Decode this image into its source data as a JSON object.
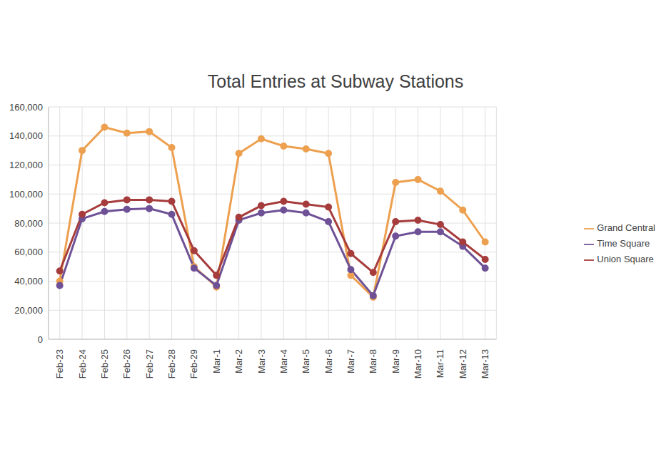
{
  "chart_data": {
    "type": "line",
    "title": "Total Entries at Subway Stations",
    "categories": [
      "Feb-23",
      "Feb-24",
      "Feb-25",
      "Feb-26",
      "Feb-27",
      "Feb-28",
      "Feb-29",
      "Mar-1",
      "Mar-2",
      "Mar-3",
      "Mar-4",
      "Mar-5",
      "Mar-6",
      "Mar-7",
      "Mar-8",
      "Mar-9",
      "Mar-10",
      "Mar-11",
      "Mar-12",
      "Mar-13"
    ],
    "series": [
      {
        "name": "Grand Central",
        "color": "#eda04f",
        "marker": "circle",
        "values": [
          40000,
          130000,
          146000,
          142000,
          143000,
          132000,
          50000,
          36000,
          128000,
          138000,
          133000,
          131000,
          128000,
          44000,
          29000,
          108000,
          110000,
          102000,
          89000,
          67000
        ]
      },
      {
        "name": "Time Square",
        "color": "#6e5196",
        "marker": "circle",
        "values": [
          37000,
          83000,
          88000,
          89500,
          90000,
          86000,
          49000,
          37000,
          82000,
          87000,
          89000,
          87000,
          81000,
          48000,
          30000,
          71000,
          74000,
          74000,
          64000,
          49000
        ]
      },
      {
        "name": "Union Square",
        "color": "#a63c3c",
        "marker": "circle",
        "values": [
          47000,
          86000,
          94000,
          96000,
          96000,
          95000,
          61000,
          44000,
          84000,
          92000,
          95000,
          93000,
          91000,
          59000,
          46000,
          81000,
          82000,
          79000,
          67000,
          55000
        ]
      }
    ],
    "ylim": [
      0,
      160000
    ],
    "yticks": [
      0,
      {
        "value": 20000,
        "label": "20,000"
      },
      {
        "value": 40000,
        "label": "40,000"
      },
      {
        "value": 60000,
        "label": "60,000"
      },
      {
        "value": 80000,
        "label": "80,000"
      },
      {
        "value": 100000,
        "label": "100,000"
      },
      {
        "value": 120000,
        "label": "120,000"
      },
      {
        "value": 140000,
        "label": "140,000"
      },
      {
        "value": 160000,
        "label": "160,000"
      }
    ],
    "grid": true,
    "legend": "right"
  }
}
